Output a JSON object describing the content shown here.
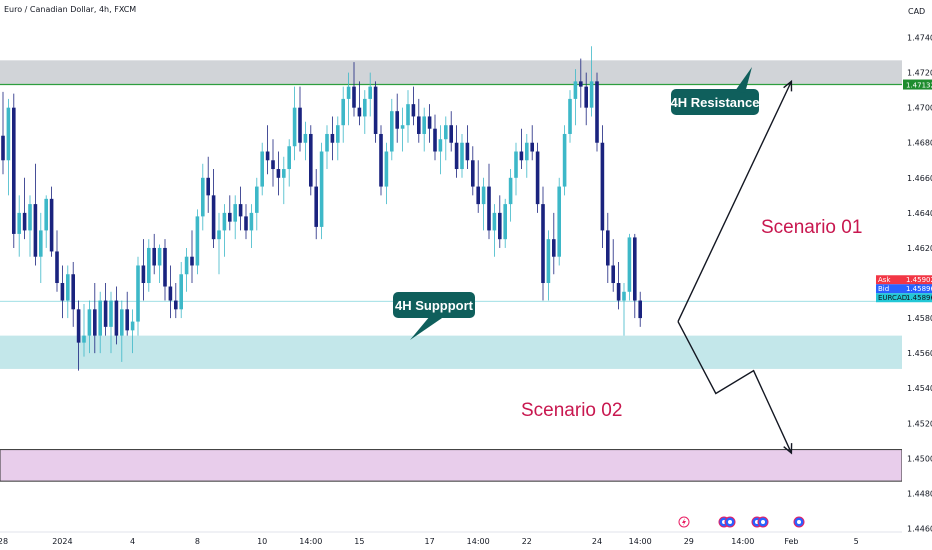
{
  "header": {
    "title": "Euro / Canadian Dollar, 4h, FXCM",
    "currency": "CAD"
  },
  "chart_data": {
    "type": "candlestick",
    "symbol": "EURCAD",
    "title": "Euro / Canadian Dollar, 4h, FXCM",
    "ylim": [
      1.4458,
      1.475
    ],
    "y_ticks": [
      "1.47400",
      "1.47200",
      "1.47000",
      "1.46800",
      "1.46600",
      "1.46400",
      "1.46200",
      "1.46000",
      "1.45800",
      "1.45600",
      "1.45400",
      "1.45200",
      "1.45000",
      "1.44800",
      "1.44600"
    ],
    "x_ticks": [
      {
        "label": "28",
        "idx": 0
      },
      {
        "label": "2024",
        "idx": 11
      },
      {
        "label": "4",
        "idx": 24
      },
      {
        "label": "8",
        "idx": 36
      },
      {
        "label": "10",
        "idx": 48
      },
      {
        "label": "14:00",
        "idx": 57
      },
      {
        "label": "15",
        "idx": 66
      },
      {
        "label": "17",
        "idx": 79
      },
      {
        "label": "14:00",
        "idx": 88
      },
      {
        "label": "22",
        "idx": 97
      },
      {
        "label": "24",
        "idx": 110
      },
      {
        "label": "14:00",
        "idx": 118
      },
      {
        "label": "29",
        "idx": 127
      },
      {
        "label": "14:00",
        "idx": 137
      },
      {
        "label": "Feb",
        "idx": 146
      },
      {
        "label": "5",
        "idx": 158
      }
    ],
    "x_slots": 172,
    "candles": [
      [
        1.4684,
        1.4709,
        1.4662,
        1.467
      ],
      [
        1.467,
        1.4705,
        1.465,
        1.47
      ],
      [
        1.47,
        1.4708,
        1.462,
        1.4628
      ],
      [
        1.4628,
        1.465,
        1.4615,
        1.464
      ],
      [
        1.464,
        1.466,
        1.4625,
        1.463
      ],
      [
        1.463,
        1.465,
        1.4615,
        1.4645
      ],
      [
        1.4645,
        1.4668,
        1.461,
        1.4615
      ],
      [
        1.4615,
        1.464,
        1.46,
        1.463
      ],
      [
        1.463,
        1.465,
        1.462,
        1.4648
      ],
      [
        1.4648,
        1.4655,
        1.4615,
        1.4618
      ],
      [
        1.4618,
        1.463,
        1.4595,
        1.46
      ],
      [
        1.46,
        1.461,
        1.458,
        1.459
      ],
      [
        1.459,
        1.461,
        1.458,
        1.4605
      ],
      [
        1.4605,
        1.4612,
        1.4575,
        1.4585
      ],
      [
        1.4585,
        1.459,
        1.455,
        1.4566
      ],
      [
        1.4566,
        1.4588,
        1.4558,
        1.457
      ],
      [
        1.457,
        1.459,
        1.456,
        1.4585
      ],
      [
        1.4585,
        1.46,
        1.456,
        1.457
      ],
      [
        1.457,
        1.4595,
        1.456,
        1.459
      ],
      [
        1.459,
        1.46,
        1.457,
        1.4575
      ],
      [
        1.4575,
        1.4595,
        1.456,
        1.459
      ],
      [
        1.459,
        1.4598,
        1.4565,
        1.457
      ],
      [
        1.457,
        1.459,
        1.4555,
        1.4585
      ],
      [
        1.4585,
        1.4595,
        1.457,
        1.4573
      ],
      [
        1.4573,
        1.4585,
        1.456,
        1.4578
      ],
      [
        1.4578,
        1.4615,
        1.457,
        1.461
      ],
      [
        1.461,
        1.4625,
        1.459,
        1.46
      ],
      [
        1.46,
        1.4625,
        1.4595,
        1.462
      ],
      [
        1.462,
        1.4628,
        1.4605,
        1.461
      ],
      [
        1.461,
        1.4622,
        1.46,
        1.462
      ],
      [
        1.462,
        1.4625,
        1.459,
        1.4598
      ],
      [
        1.4598,
        1.461,
        1.458,
        1.459
      ],
      [
        1.459,
        1.46,
        1.458,
        1.4585
      ],
      [
        1.4585,
        1.4612,
        1.458,
        1.4605
      ],
      [
        1.4605,
        1.462,
        1.4595,
        1.4615
      ],
      [
        1.4615,
        1.463,
        1.46,
        1.461
      ],
      [
        1.461,
        1.4642,
        1.4605,
        1.4638
      ],
      [
        1.4638,
        1.4668,
        1.463,
        1.466
      ],
      [
        1.466,
        1.4672,
        1.464,
        1.465
      ],
      [
        1.465,
        1.4665,
        1.462,
        1.4625
      ],
      [
        1.4625,
        1.464,
        1.4605,
        1.463
      ],
      [
        1.463,
        1.4645,
        1.4615,
        1.464
      ],
      [
        1.464,
        1.465,
        1.463,
        1.4635
      ],
      [
        1.4635,
        1.465,
        1.4625,
        1.4645
      ],
      [
        1.4645,
        1.4655,
        1.463,
        1.4638
      ],
      [
        1.4638,
        1.4645,
        1.4625,
        1.463
      ],
      [
        1.463,
        1.4645,
        1.462,
        1.464
      ],
      [
        1.464,
        1.466,
        1.463,
        1.4655
      ],
      [
        1.4655,
        1.468,
        1.465,
        1.4675
      ],
      [
        1.4675,
        1.469,
        1.4662,
        1.467
      ],
      [
        1.467,
        1.4682,
        1.4655,
        1.4665
      ],
      [
        1.4665,
        1.4675,
        1.465,
        1.466
      ],
      [
        1.466,
        1.4672,
        1.4645,
        1.4665
      ],
      [
        1.4665,
        1.4682,
        1.4655,
        1.4678
      ],
      [
        1.4678,
        1.4712,
        1.467,
        1.47
      ],
      [
        1.47,
        1.4712,
        1.4675,
        1.468
      ],
      [
        1.468,
        1.4692,
        1.467,
        1.4685
      ],
      [
        1.4685,
        1.469,
        1.465,
        1.4655
      ],
      [
        1.4655,
        1.4665,
        1.4625,
        1.4632
      ],
      [
        1.4632,
        1.468,
        1.4625,
        1.4675
      ],
      [
        1.4675,
        1.469,
        1.4665,
        1.4685
      ],
      [
        1.4685,
        1.4695,
        1.467,
        1.468
      ],
      [
        1.468,
        1.4695,
        1.467,
        1.469
      ],
      [
        1.469,
        1.4712,
        1.468,
        1.4705
      ],
      [
        1.4705,
        1.472,
        1.469,
        1.4712
      ],
      [
        1.4712,
        1.4726,
        1.4695,
        1.47
      ],
      [
        1.47,
        1.4715,
        1.469,
        1.4695
      ],
      [
        1.4695,
        1.471,
        1.4685,
        1.4705
      ],
      [
        1.4705,
        1.472,
        1.4695,
        1.4712
      ],
      [
        1.4712,
        1.4715,
        1.468,
        1.4685
      ],
      [
        1.4685,
        1.469,
        1.465,
        1.4655
      ],
      [
        1.4655,
        1.468,
        1.4645,
        1.4675
      ],
      [
        1.4675,
        1.4705,
        1.467,
        1.4698
      ],
      [
        1.4698,
        1.4708,
        1.468,
        1.4688
      ],
      [
        1.4688,
        1.47,
        1.4675,
        1.469
      ],
      [
        1.469,
        1.471,
        1.468,
        1.4702
      ],
      [
        1.4702,
        1.4712,
        1.469,
        1.4695
      ],
      [
        1.4695,
        1.4705,
        1.468,
        1.4685
      ],
      [
        1.4685,
        1.47,
        1.4675,
        1.4695
      ],
      [
        1.4695,
        1.4702,
        1.468,
        1.4688
      ],
      [
        1.4688,
        1.4696,
        1.467,
        1.4675
      ],
      [
        1.4675,
        1.469,
        1.4662,
        1.4682
      ],
      [
        1.4682,
        1.4695,
        1.467,
        1.469
      ],
      [
        1.469,
        1.4698,
        1.4675,
        1.468
      ],
      [
        1.468,
        1.469,
        1.466,
        1.4665
      ],
      [
        1.4665,
        1.4685,
        1.466,
        1.468
      ],
      [
        1.468,
        1.469,
        1.4665,
        1.467
      ],
      [
        1.467,
        1.4678,
        1.465,
        1.4655
      ],
      [
        1.4655,
        1.467,
        1.464,
        1.4645
      ],
      [
        1.4645,
        1.466,
        1.463,
        1.4655
      ],
      [
        1.4655,
        1.4668,
        1.4625,
        1.463
      ],
      [
        1.463,
        1.4645,
        1.4615,
        1.464
      ],
      [
        1.464,
        1.465,
        1.462,
        1.4625
      ],
      [
        1.4625,
        1.4648,
        1.462,
        1.4645
      ],
      [
        1.4645,
        1.4665,
        1.4635,
        1.466
      ],
      [
        1.466,
        1.468,
        1.465,
        1.4675
      ],
      [
        1.4675,
        1.4688,
        1.4665,
        1.467
      ],
      [
        1.467,
        1.4685,
        1.466,
        1.468
      ],
      [
        1.468,
        1.469,
        1.467,
        1.4675
      ],
      [
        1.4675,
        1.468,
        1.464,
        1.4645
      ],
      [
        1.4645,
        1.4655,
        1.459,
        1.46
      ],
      [
        1.46,
        1.463,
        1.459,
        1.4625
      ],
      [
        1.4625,
        1.464,
        1.4605,
        1.4615
      ],
      [
        1.4615,
        1.466,
        1.461,
        1.4655
      ],
      [
        1.4655,
        1.469,
        1.465,
        1.4685
      ],
      [
        1.4685,
        1.471,
        1.468,
        1.4705
      ],
      [
        1.4705,
        1.4722,
        1.469,
        1.4715
      ],
      [
        1.4715,
        1.4728,
        1.47,
        1.4712
      ],
      [
        1.4712,
        1.472,
        1.469,
        1.47
      ],
      [
        1.47,
        1.4735,
        1.4695,
        1.4715
      ],
      [
        1.4715,
        1.472,
        1.4675,
        1.468
      ],
      [
        1.468,
        1.469,
        1.462,
        1.463
      ],
      [
        1.463,
        1.464,
        1.46,
        1.461
      ],
      [
        1.461,
        1.4625,
        1.4595,
        1.46
      ],
      [
        1.46,
        1.4612,
        1.4585,
        1.459
      ],
      [
        1.459,
        1.46,
        1.457,
        1.4595
      ],
      [
        1.4595,
        1.4628,
        1.459,
        1.4626
      ],
      [
        1.4626,
        1.4628,
        1.458,
        1.459
      ],
      [
        1.459,
        1.4595,
        1.4575,
        1.458
      ]
    ],
    "price_tags": [
      {
        "label": "Ask",
        "value": "1.45902",
        "bg": "#f23645",
        "fg": "#ffffff"
      },
      {
        "label": "Bid",
        "value": "1.45896",
        "bg": "#2962ff",
        "fg": "#ffffff"
      },
      {
        "label": "EURCAD",
        "value": "1.45896",
        "bg": "#22c7d6",
        "fg": "#131722"
      }
    ],
    "resistance_tag": {
      "value": "1.47132",
      "bg": "#1e8c2e",
      "fg": "#ffffff"
    },
    "zones": [
      {
        "name": "resistance",
        "from": 1.4713,
        "to": 1.4727,
        "color": "#d1d4d8",
        "border": ""
      },
      {
        "name": "support",
        "from": 1.4551,
        "to": 1.457,
        "color": "#c3e7ea",
        "border": ""
      },
      {
        "name": "lower",
        "from": 1.4487,
        "to": 1.4505,
        "color": "#e8cdeb",
        "border": "#333333"
      }
    ],
    "resistance_line": 1.47132,
    "current_price": 1.45896,
    "candle_colors": {
      "up": "#3db8c8",
      "down": "#1a237e"
    },
    "annotations": {
      "resistance_label": "4H Resistance",
      "support_label": "4H Suppport",
      "scenario1": "Scenario 01",
      "scenario2": "Scenario 02",
      "callout_color": "#0f5f5c",
      "scenario_color": "#c8174f"
    },
    "projections": {
      "up": [
        [
          125,
          1.4578
        ],
        [
          146,
          1.4715
        ]
      ],
      "down": [
        [
          125,
          1.4578
        ],
        [
          132,
          1.4537
        ],
        [
          139,
          1.455
        ],
        [
          146,
          1.4503
        ]
      ]
    },
    "event_icons": [
      "lightning-icon",
      "earnings-icon",
      "earnings-icon",
      "earnings-icon",
      "earnings-icon",
      "earnings-icon"
    ]
  }
}
